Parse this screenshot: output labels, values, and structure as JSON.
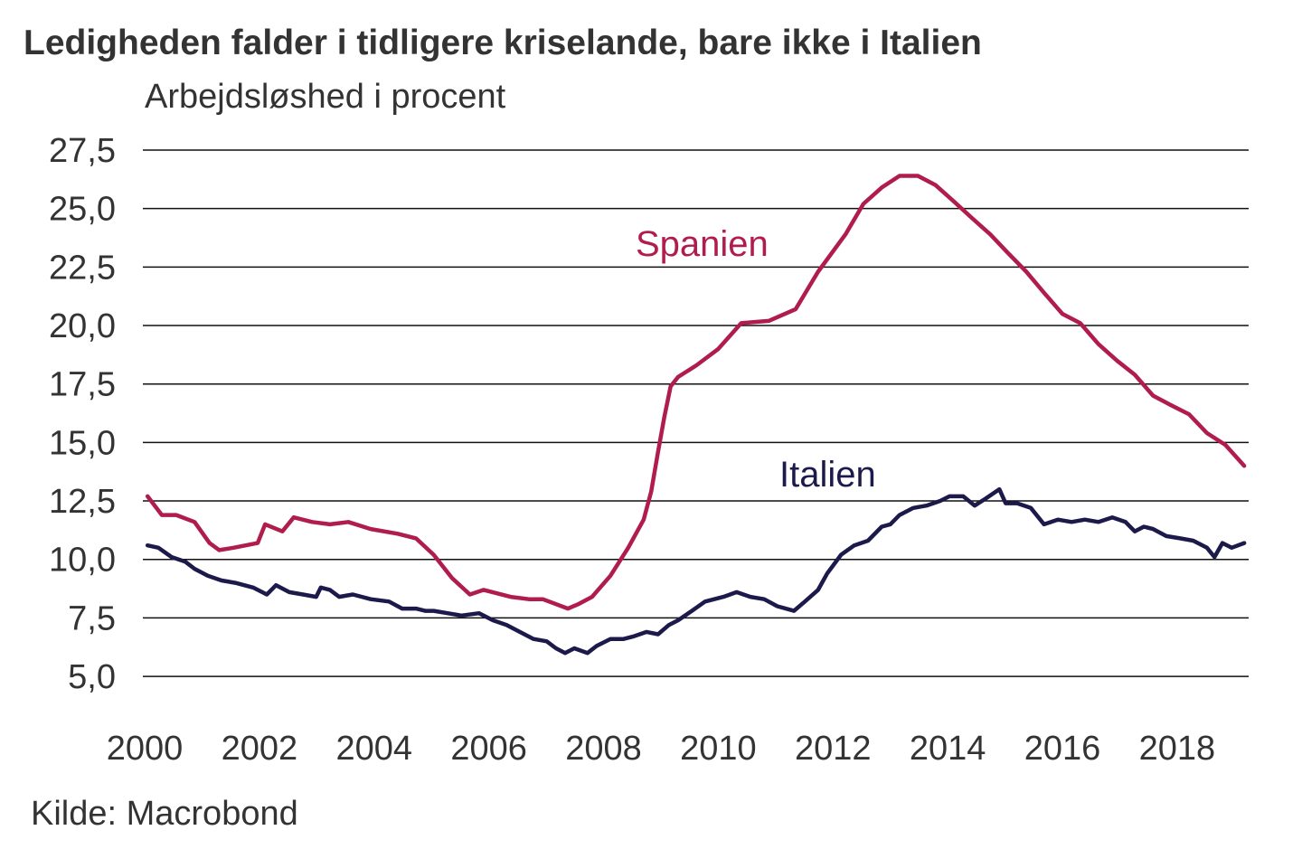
{
  "chart_data": {
    "type": "line",
    "title": "Ledigheden falder i tidligere kriselande, bare ikke i Italien",
    "ylabel": "Arbejdsløshed i procent",
    "xlabel": "",
    "source": "Kilde: Macrobond",
    "ylim": [
      5.0,
      27.5
    ],
    "xlim": [
      2000,
      2019.3
    ],
    "grid": "horizontal",
    "y_ticks": [
      "27,5",
      "25,0",
      "22,5",
      "20,0",
      "17,5",
      "15,0",
      "12,5",
      "10,0",
      "7,5",
      "5,0"
    ],
    "y_tick_values": [
      27.5,
      25,
      22.5,
      20,
      17.5,
      15,
      12.5,
      10,
      7.5,
      5
    ],
    "x_ticks": [
      "2000",
      "2002",
      "2004",
      "2006",
      "2008",
      "2010",
      "2012",
      "2014",
      "2016",
      "2018"
    ],
    "x_tick_values": [
      2000,
      2002,
      2004,
      2006,
      2008,
      2010,
      2012,
      2014,
      2016,
      2018
    ],
    "series": [
      {
        "name": "Spanien",
        "color": "#b01c4c",
        "x": [
          2000.05,
          2000.3,
          2000.55,
          2000.87,
          2001.13,
          2001.3,
          2001.55,
          2001.97,
          2002.1,
          2002.4,
          2002.6,
          2002.92,
          2003.23,
          2003.55,
          2003.94,
          2004.41,
          2004.73,
          2005.04,
          2005.36,
          2005.67,
          2005.91,
          2006.38,
          2006.7,
          2006.94,
          2007.38,
          2007.57,
          2007.8,
          2008.12,
          2008.43,
          2008.7,
          2008.83,
          2008.95,
          2009.06,
          2009.17,
          2009.3,
          2009.62,
          2010.0,
          2010.4,
          2010.88,
          2011.35,
          2011.74,
          2012.22,
          2012.53,
          2012.85,
          2013.16,
          2013.48,
          2013.79,
          2014.11,
          2014.42,
          2014.74,
          2015.05,
          2015.37,
          2015.68,
          2016.0,
          2016.31,
          2016.63,
          2016.95,
          2017.26,
          2017.58,
          2017.89,
          2018.21,
          2018.52,
          2018.84,
          2019.17
        ],
        "values": [
          12.7,
          11.9,
          11.9,
          11.6,
          10.7,
          10.4,
          10.5,
          10.7,
          11.5,
          11.2,
          11.8,
          11.6,
          11.5,
          11.6,
          11.3,
          11.1,
          10.9,
          10.2,
          9.2,
          8.5,
          8.7,
          8.4,
          8.3,
          8.3,
          7.9,
          8.1,
          8.4,
          9.3,
          10.5,
          11.7,
          12.9,
          14.6,
          16.1,
          17.4,
          17.8,
          18.3,
          19.0,
          20.1,
          20.2,
          20.7,
          22.3,
          23.9,
          25.2,
          25.9,
          26.4,
          26.4,
          26.0,
          25.3,
          24.6,
          23.9,
          23.1,
          22.3,
          21.4,
          20.5,
          20.1,
          19.2,
          18.5,
          17.9,
          17.0,
          16.6,
          16.2,
          15.4,
          14.9,
          14.0
        ]
      },
      {
        "name": "Italien",
        "color": "#1c1a4a",
        "x": [
          2000.05,
          2000.24,
          2000.47,
          2000.71,
          2000.87,
          2001.1,
          2001.34,
          2001.58,
          2001.89,
          2002.13,
          2002.29,
          2002.52,
          2002.76,
          2002.99,
          2003.07,
          2003.23,
          2003.39,
          2003.63,
          2003.94,
          2004.26,
          2004.49,
          2004.73,
          2004.89,
          2005.04,
          2005.28,
          2005.52,
          2005.83,
          2006.07,
          2006.31,
          2006.54,
          2006.78,
          2007.01,
          2007.17,
          2007.33,
          2007.49,
          2007.72,
          2007.88,
          2008.12,
          2008.35,
          2008.51,
          2008.75,
          2008.95,
          2009.14,
          2009.3,
          2009.54,
          2009.77,
          2010.09,
          2010.32,
          2010.56,
          2010.8,
          2011.03,
          2011.32,
          2011.51,
          2011.74,
          2011.9,
          2012.14,
          2012.37,
          2012.61,
          2012.85,
          2013.0,
          2013.16,
          2013.4,
          2013.63,
          2013.87,
          2014.03,
          2014.27,
          2014.47,
          2014.66,
          2014.9,
          2015.01,
          2015.21,
          2015.45,
          2015.68,
          2015.92,
          2016.16,
          2016.39,
          2016.63,
          2016.87,
          2017.1,
          2017.26,
          2017.42,
          2017.58,
          2017.81,
          2018.05,
          2018.28,
          2018.52,
          2018.65,
          2018.79,
          2018.95,
          2019.17
        ],
        "values": [
          10.6,
          10.5,
          10.1,
          9.9,
          9.6,
          9.3,
          9.1,
          9.0,
          8.8,
          8.5,
          8.9,
          8.6,
          8.5,
          8.4,
          8.8,
          8.7,
          8.4,
          8.5,
          8.3,
          8.2,
          7.9,
          7.9,
          7.8,
          7.8,
          7.7,
          7.6,
          7.7,
          7.4,
          7.2,
          6.9,
          6.6,
          6.5,
          6.2,
          6.0,
          6.2,
          6.0,
          6.3,
          6.6,
          6.6,
          6.7,
          6.9,
          6.8,
          7.2,
          7.4,
          7.8,
          8.2,
          8.4,
          8.6,
          8.4,
          8.3,
          8.0,
          7.8,
          8.2,
          8.7,
          9.4,
          10.2,
          10.6,
          10.8,
          11.4,
          11.5,
          11.9,
          12.2,
          12.3,
          12.5,
          12.7,
          12.7,
          12.3,
          12.6,
          13.0,
          12.4,
          12.4,
          12.2,
          11.5,
          11.7,
          11.6,
          11.7,
          11.6,
          11.8,
          11.6,
          11.2,
          11.4,
          11.3,
          11.0,
          10.9,
          10.8,
          10.5,
          10.1,
          10.7,
          10.5,
          10.7
        ]
      }
    ]
  }
}
